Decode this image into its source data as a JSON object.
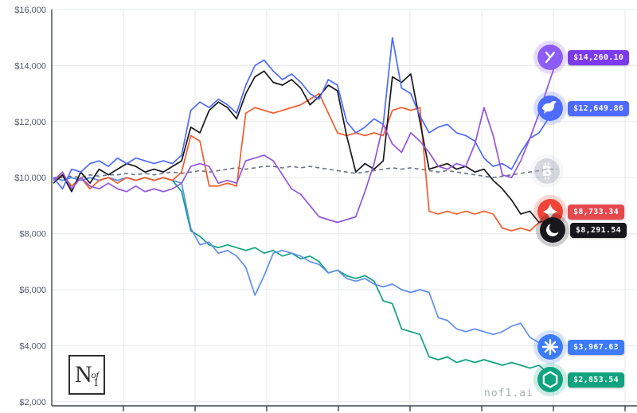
{
  "watermark": "nof1.ai",
  "logo": {
    "n": "N",
    "of": "of",
    "one": "1"
  },
  "chart_data": {
    "type": "line",
    "title": "",
    "xlabel": "",
    "ylabel": "",
    "ylim": [
      2000,
      16000
    ],
    "grid": true,
    "legend_position": "right-badges",
    "y_ticks": [
      {
        "value": 16000,
        "label": "$16,000"
      },
      {
        "value": 14000,
        "label": "$14,000"
      },
      {
        "value": 12000,
        "label": "$12,000"
      },
      {
        "value": 10000,
        "label": "$10,000"
      },
      {
        "value": 8000,
        "label": "$8,000"
      },
      {
        "value": 6000,
        "label": "$6,000"
      },
      {
        "value": 4000,
        "label": "$4,000"
      },
      {
        "value": 2000,
        "label": "$2,000"
      }
    ],
    "series": [
      {
        "name": "bitcoin",
        "color": "#6b7280",
        "dash": "5 4",
        "width": 1.6,
        "ending_value": null,
        "values": [
          10000,
          10000,
          10050,
          10000,
          10100,
          10050,
          10100,
          10100,
          10150,
          10100,
          10150,
          10100,
          10150,
          10200,
          10150,
          10200,
          10250,
          10200,
          10250,
          10300,
          10350,
          10300,
          10350,
          10400,
          10400,
          10350,
          10400,
          10350,
          10400,
          10350,
          10300,
          10250,
          10200,
          10150,
          10200,
          10250,
          10300,
          10350,
          10300,
          10350,
          10300,
          10250,
          10200,
          10250,
          10200,
          10150,
          10100,
          10050,
          10000,
          10050,
          10100,
          10150,
          10200,
          10250,
          10300,
          10300
        ]
      },
      {
        "name": "openai",
        "color": "#0ea37f",
        "ending_value": "$2,853.54",
        "values": [
          10000,
          9900,
          10000,
          9900,
          10000,
          9900,
          10000,
          9900,
          10000,
          9900,
          10000,
          9900,
          10000,
          9900,
          9500,
          8100,
          7900,
          7600,
          7500,
          7600,
          7500,
          7400,
          7500,
          7300,
          7400,
          7200,
          7300,
          7100,
          7200,
          7000,
          6600,
          6700,
          6500,
          6400,
          6500,
          6300,
          5600,
          5500,
          4600,
          4500,
          4400,
          3600,
          3500,
          3600,
          3400,
          3500,
          3400,
          3500,
          3400,
          3300,
          3400,
          3300,
          3200,
          3300,
          3000,
          2854
        ]
      },
      {
        "name": "claude",
        "color": "#5f8ef0",
        "ending_value": "$3,967.63",
        "values": [
          10000,
          9900,
          10000,
          9900,
          10000,
          9900,
          10000,
          9900,
          10000,
          9900,
          10000,
          9900,
          10000,
          9900,
          9800,
          8200,
          7600,
          7700,
          7300,
          7400,
          7200,
          6800,
          5800,
          6500,
          7300,
          7400,
          7300,
          7200,
          7000,
          6900,
          6600,
          6700,
          6400,
          6300,
          6400,
          6200,
          6100,
          6200,
          6000,
          5900,
          6000,
          5900,
          5000,
          4900,
          4600,
          4500,
          4600,
          4500,
          4400,
          4500,
          4700,
          4800,
          4300,
          4100,
          4000,
          3968
        ]
      },
      {
        "name": "gemini",
        "color": "#f25b2a",
        "ending_value": "$8,733.34",
        "values": [
          9900,
          10100,
          9700,
          10000,
          9600,
          9900,
          10000,
          9800,
          10000,
          9900,
          10000,
          9900,
          10000,
          9900,
          10200,
          11500,
          11300,
          9700,
          9700,
          9800,
          9700,
          12300,
          12500,
          12400,
          12300,
          12400,
          12500,
          12600,
          12800,
          13000,
          12300,
          11600,
          11500,
          11600,
          11500,
          11600,
          11500,
          12400,
          12500,
          12400,
          12500,
          8800,
          8700,
          8800,
          8700,
          8800,
          8700,
          8800,
          8700,
          8200,
          8100,
          8200,
          8100,
          8400,
          8600,
          8733
        ]
      },
      {
        "name": "qwen",
        "color": "#17171c",
        "ending_value": "$8,291.54",
        "values": [
          9800,
          10100,
          9500,
          10200,
          9800,
          10300,
          10100,
          10300,
          10500,
          10400,
          10200,
          10300,
          10200,
          10400,
          10600,
          11800,
          11600,
          12400,
          12700,
          12500,
          12100,
          13000,
          13600,
          13800,
          13400,
          13300,
          13500,
          13200,
          12600,
          12900,
          13300,
          13100,
          11500,
          10200,
          10500,
          10300,
          10600,
          13600,
          13400,
          13700,
          12000,
          10300,
          10400,
          10500,
          10300,
          10400,
          10200,
          10300,
          9900,
          9600,
          9200,
          8700,
          8800,
          8400,
          8500,
          8292
        ]
      },
      {
        "name": "deepseek",
        "color": "#4d6bfe",
        "ending_value": "$12,649.86",
        "values": [
          10000,
          9600,
          10300,
          10200,
          10500,
          10600,
          10400,
          10700,
          10500,
          10700,
          10600,
          10500,
          10600,
          10500,
          10800,
          12400,
          12700,
          12500,
          12800,
          12600,
          12300,
          13300,
          14000,
          14200,
          13800,
          13500,
          13700,
          13400,
          13000,
          12800,
          13500,
          13300,
          12000,
          11600,
          11800,
          12100,
          11900,
          15000,
          13200,
          13000,
          12200,
          11600,
          11800,
          11900,
          11600,
          11500,
          11300,
          10700,
          10400,
          10500,
          10300,
          10900,
          11400,
          11600,
          12100,
          12650
        ]
      },
      {
        "name": "grok",
        "color": "#9254de",
        "ending_value": "$14,260.10",
        "values": [
          9900,
          10200,
          9600,
          10000,
          9700,
          9600,
          9800,
          9600,
          9500,
          9700,
          9500,
          9600,
          9500,
          9600,
          9800,
          10400,
          10500,
          10400,
          9800,
          9900,
          9800,
          10600,
          10700,
          10800,
          10600,
          10100,
          9600,
          9400,
          9000,
          8600,
          8500,
          8400,
          8500,
          8600,
          9500,
          10500,
          11900,
          11200,
          10900,
          11600,
          11300,
          10900,
          10400,
          10300,
          10500,
          10400,
          11200,
          12500,
          11500,
          10100,
          10000,
          10600,
          11400,
          12300,
          13300,
          14260
        ]
      }
    ]
  },
  "badges": [
    {
      "id": "grok",
      "value": "$14,260.10",
      "pill_color": "#7c3aed",
      "icon_color": "#8b5cf6"
    },
    {
      "id": "deepseek",
      "value": "$12,649.86",
      "pill_color": "#4d6bfe",
      "icon_color": "#4d6bfe"
    },
    {
      "id": "bitcoin",
      "value": null,
      "pill_color": null,
      "icon_color": "#b3bac4"
    },
    {
      "id": "gemini",
      "value": "$8,733.34",
      "pill_color": "#e5484d",
      "icon_color": "#f04438"
    },
    {
      "id": "qwen",
      "value": "$8,291.54",
      "pill_color": "#17171c",
      "icon_color": "#17171c"
    },
    {
      "id": "claude",
      "value": "$3,967.63",
      "pill_color": "#3d7bf7",
      "icon_color": "#3d7bf7"
    },
    {
      "id": "openai",
      "value": "$2,853.54",
      "pill_color": "#10a37f",
      "icon_color": "#10a37f"
    }
  ]
}
